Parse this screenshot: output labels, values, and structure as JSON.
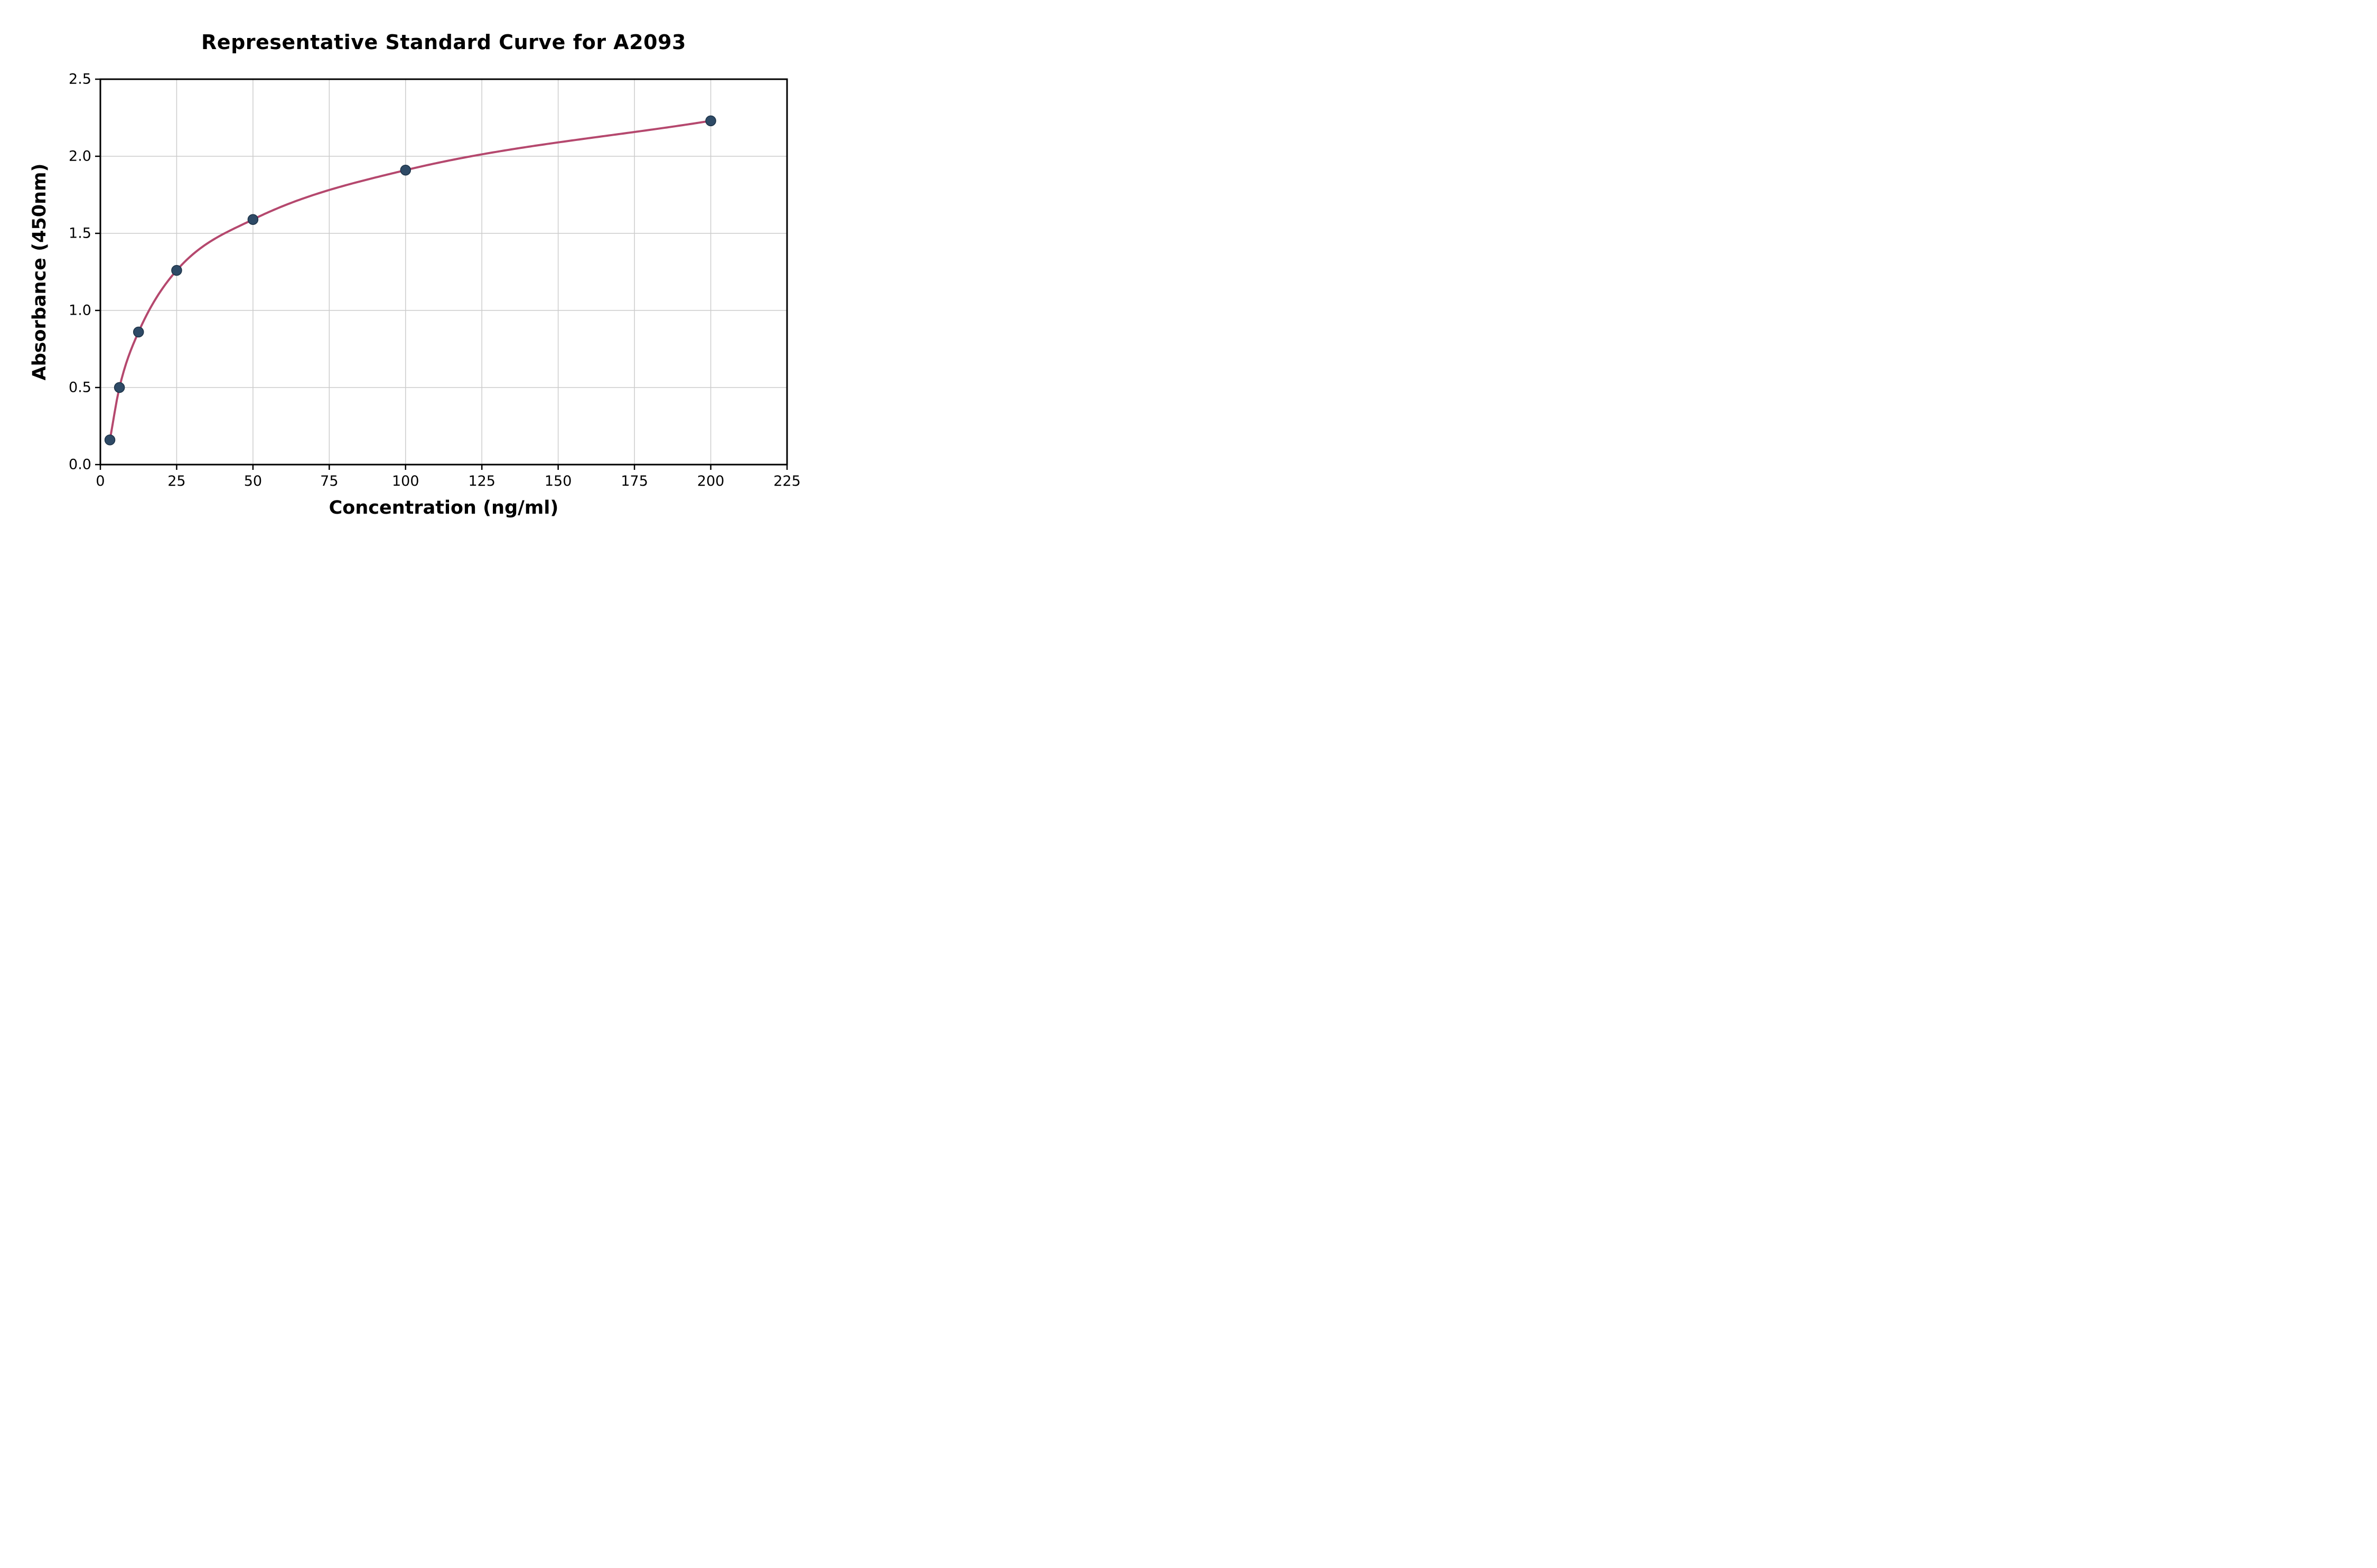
{
  "figure": {
    "background": "#ffffff"
  },
  "chart_data": {
    "type": "scatter",
    "title": "Representative Standard Curve for A2093",
    "xlabel": "Concentration (ng/ml)",
    "ylabel": "Absorbance (450nm)",
    "xlim": [
      0,
      225
    ],
    "ylim": [
      0,
      2.5
    ],
    "grid": true,
    "legend": "none",
    "x_ticks": [
      0,
      25,
      50,
      75,
      100,
      125,
      150,
      175,
      200,
      225
    ],
    "x_tick_labels": [
      "0",
      "25",
      "50",
      "75",
      "100",
      "125",
      "150",
      "175",
      "200",
      "225"
    ],
    "y_ticks": [
      0.0,
      0.5,
      1.0,
      1.5,
      2.0,
      2.5
    ],
    "y_tick_labels": [
      "0.0",
      "0.5",
      "1.0",
      "1.5",
      "2.0",
      "2.5"
    ],
    "points": {
      "x": [
        3.125,
        6.25,
        12.5,
        25,
        50,
        100,
        200
      ],
      "y": [
        0.16,
        0.5,
        0.86,
        1.26,
        1.59,
        1.91,
        2.23
      ]
    },
    "curve_color": "#b5486e",
    "point_color": "#2e4a66",
    "point_edge_color": "#1d3347",
    "grid_color": "#cccccc",
    "spine_color": "#000000"
  }
}
